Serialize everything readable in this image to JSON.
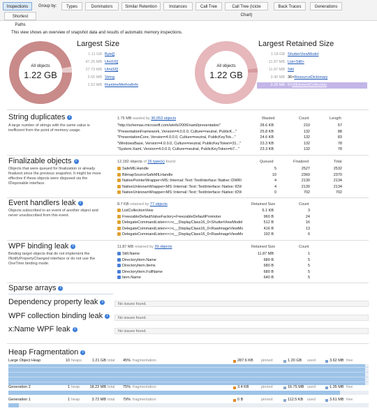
{
  "tabs": [
    {
      "label": "Inspections",
      "active": true
    },
    {
      "label": "Types"
    },
    {
      "label": "Dominators"
    },
    {
      "label": "Similar Retention"
    },
    {
      "label": "Instances"
    },
    {
      "label": "Call Tree"
    },
    {
      "label": "Call Tree (Icicle Chart)"
    },
    {
      "label": "Back Traces"
    },
    {
      "label": "Generations"
    },
    {
      "label": "Shortest Paths"
    }
  ],
  "group_by_label": "Group by:",
  "overview_text": "This view shows an overview of snapshot data and results of automatic memory inspections.",
  "largest_size": {
    "title": "Largest Size",
    "center_label": "All objects",
    "center_value": "1.22 GB",
    "items": [
      {
        "size": "1.11 GB",
        "name": "Byte[]"
      },
      {
        "size": "47.25 MB",
        "name": "UInt16[]"
      },
      {
        "size": "27.73 MB",
        "name": "UInt32[]"
      },
      {
        "size": "2.65 MB",
        "name": "String"
      },
      {
        "size": "1.52 MB",
        "name": "RuntimeMethodInfo"
      }
    ]
  },
  "largest_retained": {
    "title": "Largest Retained Size",
    "center_label": "All objects",
    "center_value": "1.22 GB",
    "items": [
      {
        "size": "1.18 GB",
        "name": "ShutterViewModel"
      },
      {
        "size": "11.87 MB",
        "name": "List<Still>"
      },
      {
        "size": "11.87 MB",
        "name": "Still"
      },
      {
        "size": "3.40 MB",
        "name": "ResourceDictionary",
        "prefix": "36×"
      },
      {
        "size": "3.28 MB",
        "name": "UIElementCollection",
        "prefix": "5×"
      }
    ]
  },
  "string_duplicates": {
    "title": "String duplicates",
    "desc": "A large number of strings with the same value is inefficient from the point of memory usage.",
    "summary_pre": "1.75 MB",
    "summary_mid": "wasted by",
    "summary_link": "30,053 objects",
    "columns": [
      "Wasted",
      "Count",
      "Length"
    ],
    "rows": [
      {
        "value": "\"http://schemas.microsoft.com/winfx/2006/xaml/presentation\"",
        "wasted": "28.6 KB",
        "count": "210",
        "length": "57"
      },
      {
        "value": "\"PresentationFramework, Version=4.0.0.0, Culture=neutral, PublicK...\"",
        "wasted": "25.8 KB",
        "count": "132",
        "length": "88"
      },
      {
        "value": "\"PresentationCore, Version=4.0.0.0, Culture=neutral, PublicKeyTok...\"",
        "wasted": "24.6 KB",
        "count": "132",
        "length": "83"
      },
      {
        "value": "\"WindowsBase, Version=4.0.0.0, Culture=neutral, PublicKeyToken=31...\"",
        "wasted": "23.3 KB",
        "count": "132",
        "length": "78"
      },
      {
        "value": "\"System.Xaml, Version=4.0.0.0, Culture=neutral, PublicKeyToken=b7...\"",
        "wasted": "23.3 KB",
        "count": "132",
        "length": "78"
      }
    ]
  },
  "finalizable": {
    "title": "Finalizable objects",
    "desc": "Objects that were queued for finalization or already finalized since the previous snapshot. It might be more effective if these objects were disposed via the IDisposable interface.",
    "summary_pre": "12,182 objects",
    "summary_mid": "of",
    "summary_link": "26 type(s)",
    "summary_post": "found",
    "columns": [
      "Queued",
      "Finalized",
      "Total"
    ],
    "rows": [
      {
        "name": "SafeMILHandle",
        "queued": "5",
        "finalized": "2527",
        "total": "2532"
      },
      {
        "name": "BitmapSourceSafeMILHandle",
        "queued": "10",
        "finalized": "2360",
        "total": "2370"
      },
      {
        "name": "NativePointerWrapper<MS::Internal::Text::TextInterface::Native::DWRITE",
        "queued": "4",
        "finalized": "2130",
        "total": "2134"
      },
      {
        "name": "NativeUnknownWrapper<MS::Internal::Text::TextInterface::Native::IDWri",
        "queued": "4",
        "finalized": "2130",
        "total": "2134"
      },
      {
        "name": "NativeUnknownWrapper<MS::Internal::Text::TextInterface::Native::IDWri",
        "queued": "0",
        "finalized": "702",
        "total": "702"
      }
    ]
  },
  "event_handlers": {
    "title": "Event handlers leak",
    "desc": "Objects subscribed to an event of another object and never unsubscribed from this event.",
    "summary_pre": "8.7 KB",
    "summary_mid": "retained by",
    "summary_link": "77 objects",
    "columns": [
      "Retained Size",
      "Count"
    ],
    "rows": [
      {
        "name": "ListCollectionView",
        "size": "6.1 KB",
        "count": "3"
      },
      {
        "name": "FreezableDefaultValueFactory+FreezableDefaultPromoter",
        "size": "960 B",
        "count": "24"
      },
      {
        "name": "DelegateCommandListen<<>c__DisplayClass16_0<ShutterViewModel, I",
        "size": "512 B",
        "count": "16"
      },
      {
        "name": "DelegateCommandListen<<>c__DisplayClass16_0<RawImageViewModel,",
        "size": "416 B",
        "count": "13"
      },
      {
        "name": "DelegateCommandListen<<>c__DisplayClass16_0<RawImageViewModel,",
        "size": "192 B",
        "count": "6"
      }
    ]
  },
  "wpf_binding": {
    "title": "WPF binding leak",
    "desc": "Binding target objects that do not implement the INotifyPropertyChanged interface or do not use the OneTime binding mode.",
    "summary_pre": "11.87 MB",
    "summary_mid": "retained by",
    "summary_link": "39 objects",
    "columns": [
      "Retained Size",
      "Count"
    ],
    "rows": [
      {
        "name": "Still.Name",
        "size": "11.87 MB",
        "count": "1"
      },
      {
        "name": "DirectoryItem.Name",
        "size": "680 B",
        "count": "5"
      },
      {
        "name": "DirectoryItem.Items",
        "size": "680 B",
        "count": "5"
      },
      {
        "name": "DirectoryItem.FullName",
        "size": "680 B",
        "count": "5"
      },
      {
        "name": "Item.Name",
        "size": "640 B",
        "count": "5"
      }
    ]
  },
  "sparse_arrays": {
    "title": "Sparse arrays"
  },
  "dependency_leak": {
    "title": "Dependency property leak",
    "none": "No issues found."
  },
  "wpf_collection": {
    "title": "WPF collection binding leak",
    "none": "No issues found."
  },
  "xname_leak": {
    "title": "x:Name WPF leak",
    "none": "No issues found."
  },
  "heap": {
    "title": "Heap Fragmentation",
    "rows": [
      {
        "name": "Large Object Heap",
        "heaps": "10",
        "heaps_label": "heaps",
        "total": "1.21 GB",
        "total_label": "total",
        "frag": "45%",
        "frag_label": "fragmentation",
        "pinned": "287.6 KB",
        "pinned_label": "pinned",
        "used": "1.20 GB",
        "used_label": "used",
        "free": "3.62 MB",
        "free_label": "free",
        "used_frac": 0.99
      },
      {
        "name": "Generation 2",
        "heaps": "1",
        "heaps_label": "heap",
        "total": "18.23 MB",
        "total_label": "total",
        "frag": "75%",
        "frag_label": "fragmentation",
        "pinned": "3.4 KB",
        "pinned_label": "pinned",
        "used": "16.75 MB",
        "used_label": "used",
        "free": "1.35 MB",
        "free_label": "free",
        "used_frac": 0.92
      },
      {
        "name": "Generation 1",
        "heaps": "1",
        "heaps_label": "heap",
        "total": "3.72 MB",
        "total_label": "total",
        "frag": "79%",
        "frag_label": "fragmentation",
        "pinned": "0 B",
        "pinned_label": "pinned",
        "used": "112.5 KB",
        "used_label": "used",
        "free": "3.61 MB",
        "free_label": "free",
        "used_frac": 0.03
      }
    ]
  },
  "colors": {
    "donut_left": "#c98a8a",
    "donut_right": "#e6b7bb",
    "link": "#1a55b6",
    "heap_bar": "#9dc3e8",
    "pinned": "#e08a2a",
    "used": "#8aa8c8",
    "free": "#7aa0d0"
  }
}
